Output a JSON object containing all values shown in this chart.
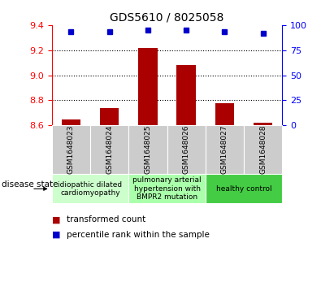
{
  "title": "GDS5610 / 8025058",
  "samples": [
    "GSM1648023",
    "GSM1648024",
    "GSM1648025",
    "GSM1648026",
    "GSM1648027",
    "GSM1648028"
  ],
  "bar_values": [
    8.65,
    8.74,
    9.22,
    9.08,
    8.78,
    8.62
  ],
  "dot_values": [
    93,
    93,
    95,
    95,
    93,
    92
  ],
  "ylim_left": [
    8.6,
    9.4
  ],
  "ylim_right": [
    0,
    100
  ],
  "yticks_left": [
    8.6,
    8.8,
    9.0,
    9.2,
    9.4
  ],
  "yticks_right": [
    0,
    25,
    50,
    75,
    100
  ],
  "bar_color": "#aa0000",
  "dot_color": "#0000cc",
  "bar_bottom": 8.6,
  "disease_groups": [
    {
      "label": "idiopathic dilated\ncardiomyopathy",
      "start": 0,
      "end": 2,
      "color": "#ccffcc"
    },
    {
      "label": "pulmonary arterial\nhypertension with\nBMPR2 mutation",
      "start": 2,
      "end": 4,
      "color": "#aaffaa"
    },
    {
      "label": "healthy control",
      "start": 4,
      "end": 6,
      "color": "#44cc44"
    }
  ],
  "legend_items": [
    {
      "label": "transformed count",
      "color": "#aa0000"
    },
    {
      "label": "percentile rank within the sample",
      "color": "#0000cc"
    }
  ],
  "disease_state_label": "disease state",
  "grid_color": "black",
  "background_color": "#ffffff",
  "sample_box_color": "#cccccc",
  "title_fontsize": 10,
  "tick_fontsize": 8,
  "sample_fontsize": 6.5,
  "group_fontsize": 6.5,
  "legend_fontsize": 7.5,
  "label_fontsize": 7.5
}
